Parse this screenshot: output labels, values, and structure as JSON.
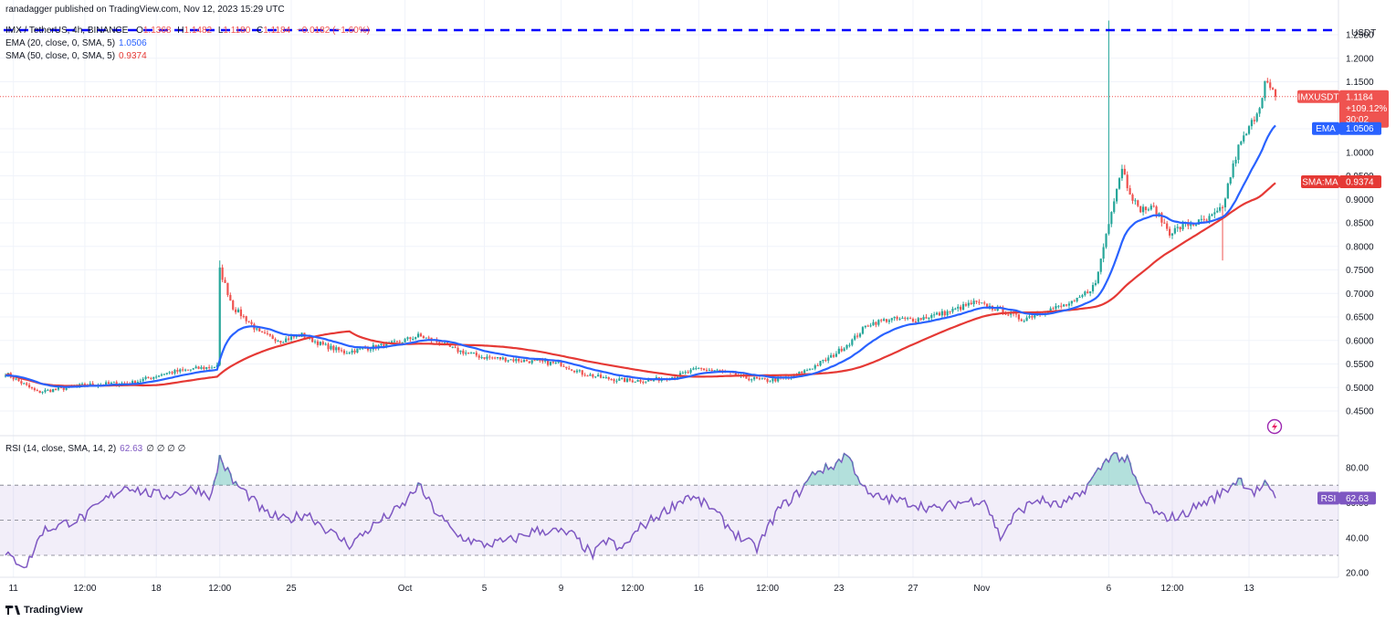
{
  "header": {
    "author_line": "ranadagger published on TradingView.com, Nov 12, 2023 15:29 UTC",
    "symbol_line": "IMX / TetherUS, 4h, BINANCE",
    "ohlc": {
      "o_label": "O",
      "o": "1.1368",
      "h_label": "H",
      "h": "1.1482",
      "l_label": "L",
      "l": "1.1180",
      "c_label": "C",
      "c": "1.1184",
      "chg": "−0.0182 (−1.60%)"
    },
    "ema_label": "EMA (20, close, 0, SMA, 5)",
    "ema_value": "1.0506",
    "sma_label": "SMA (50, close, 0, SMA, 5)",
    "sma_value": "0.9374",
    "rsi_label": "RSI (14, close, SMA, 14, 2)",
    "rsi_value": "62.63",
    "rsi_extra": "∅ ∅ ∅ ∅"
  },
  "branding": {
    "name": "TradingView"
  },
  "price_axis": {
    "currency": "USDT",
    "ticks": [
      "1.2500",
      "1.2000",
      "1.1500",
      "1.0500",
      "1.0000",
      "0.9500",
      "0.9000",
      "0.8500",
      "0.8000",
      "0.7500",
      "0.7000",
      "0.6500",
      "0.6000",
      "0.5500",
      "0.5000",
      "0.4500"
    ]
  },
  "rsi_axis": {
    "ticks": [
      "80.00",
      "60.00",
      "40.00",
      "20.00"
    ]
  },
  "time_axis": {
    "labels": [
      "11",
      "12:00",
      "18",
      "12:00",
      "25",
      "Oct",
      "5",
      "9",
      "12:00",
      "16",
      "12:00",
      "23",
      "27",
      "Nov",
      "6",
      "12:00",
      "13"
    ]
  },
  "tags": {
    "price": {
      "symbol": "IMXUSDT",
      "value": "1.1184",
      "change": "+109.12%",
      "countdown": "30:02"
    },
    "ema": {
      "label": "EMA",
      "value": "1.0506"
    },
    "sma": {
      "label": "SMA:MA",
      "value": "0.9374"
    },
    "rsi": {
      "label": "RSI",
      "value": "62.63"
    }
  },
  "colors": {
    "up": "#26a69a",
    "down": "#ef5350",
    "ema": "#2962ff",
    "sma": "#e53935",
    "rsi": "#7e57c2",
    "resistance": "#0000ff",
    "grid": "#f0f3fa"
  },
  "chart_data": [
    {
      "type": "candlestick",
      "title": "IMX / TetherUS, 4h, BINANCE",
      "ylabel": "USDT",
      "ylim": [
        0.45,
        1.28
      ],
      "resistance_level": 1.29,
      "x_labels": [
        "11",
        "12:00",
        "18",
        "12:00",
        "25",
        "Oct",
        "5",
        "9",
        "12:00",
        "16",
        "12:00",
        "23",
        "27",
        "Nov",
        "6",
        "12:00",
        "13"
      ],
      "anchors": [
        [
          0,
          0.53
        ],
        [
          12,
          0.49
        ],
        [
          30,
          0.505
        ],
        [
          48,
          0.51
        ],
        [
          60,
          0.53
        ],
        [
          72,
          0.54
        ],
        [
          80,
          0.545
        ],
        [
          81,
          0.75
        ],
        [
          86,
          0.67
        ],
        [
          92,
          0.64
        ],
        [
          96,
          0.615
        ],
        [
          104,
          0.6
        ],
        [
          112,
          0.612
        ],
        [
          120,
          0.59
        ],
        [
          128,
          0.575
        ],
        [
          138,
          0.585
        ],
        [
          148,
          0.595
        ],
        [
          156,
          0.61
        ],
        [
          162,
          0.6
        ],
        [
          170,
          0.58
        ],
        [
          180,
          0.565
        ],
        [
          190,
          0.56
        ],
        [
          200,
          0.555
        ],
        [
          210,
          0.55
        ],
        [
          218,
          0.53
        ],
        [
          226,
          0.52
        ],
        [
          234,
          0.515
        ],
        [
          244,
          0.515
        ],
        [
          254,
          0.525
        ],
        [
          262,
          0.54
        ],
        [
          270,
          0.535
        ],
        [
          280,
          0.52
        ],
        [
          288,
          0.515
        ],
        [
          296,
          0.52
        ],
        [
          304,
          0.54
        ],
        [
          312,
          0.565
        ],
        [
          320,
          0.6
        ],
        [
          326,
          0.635
        ],
        [
          334,
          0.645
        ],
        [
          344,
          0.645
        ],
        [
          356,
          0.66
        ],
        [
          366,
          0.68
        ],
        [
          376,
          0.665
        ],
        [
          384,
          0.645
        ],
        [
          394,
          0.665
        ],
        [
          404,
          0.68
        ],
        [
          412,
          0.72
        ],
        [
          418,
          0.88
        ],
        [
          422,
          0.97
        ],
        [
          424,
          0.93
        ],
        [
          428,
          0.88
        ],
        [
          434,
          0.88
        ],
        [
          440,
          0.83
        ],
        [
          446,
          0.845
        ],
        [
          454,
          0.855
        ],
        [
          460,
          0.88
        ],
        [
          462,
          0.93
        ],
        [
          466,
          1.01
        ],
        [
          470,
          1.05
        ],
        [
          474,
          1.1
        ],
        [
          476,
          1.15
        ],
        [
          480,
          1.1184
        ]
      ],
      "series": [
        {
          "name": "EMA (20, close, 0, SMA, 5)",
          "last": 1.0506
        },
        {
          "name": "SMA (50, close, 0, SMA, 5)",
          "last": 0.9374
        }
      ]
    },
    {
      "type": "line",
      "title": "RSI (14, close, SMA, 14, 2)",
      "ylim": [
        16,
        92
      ],
      "bands": [
        70,
        50,
        30
      ],
      "anchors": [
        [
          0,
          30
        ],
        [
          8,
          24
        ],
        [
          14,
          44
        ],
        [
          22,
          48
        ],
        [
          30,
          52
        ],
        [
          38,
          62
        ],
        [
          46,
          70
        ],
        [
          52,
          66
        ],
        [
          60,
          64
        ],
        [
          66,
          66
        ],
        [
          72,
          68
        ],
        [
          78,
          64
        ],
        [
          81,
          86
        ],
        [
          86,
          72
        ],
        [
          92,
          64
        ],
        [
          98,
          54
        ],
        [
          106,
          50
        ],
        [
          114,
          54
        ],
        [
          122,
          44
        ],
        [
          130,
          36
        ],
        [
          140,
          48
        ],
        [
          150,
          58
        ],
        [
          156,
          70
        ],
        [
          162,
          56
        ],
        [
          170,
          42
        ],
        [
          180,
          36
        ],
        [
          190,
          38
        ],
        [
          200,
          44
        ],
        [
          206,
          44
        ],
        [
          214,
          42
        ],
        [
          222,
          30
        ],
        [
          228,
          40
        ],
        [
          232,
          32
        ],
        [
          240,
          46
        ],
        [
          250,
          56
        ],
        [
          258,
          64
        ],
        [
          266,
          58
        ],
        [
          276,
          42
        ],
        [
          284,
          34
        ],
        [
          292,
          56
        ],
        [
          300,
          66
        ],
        [
          306,
          78
        ],
        [
          312,
          80
        ],
        [
          318,
          88
        ],
        [
          326,
          64
        ],
        [
          334,
          62
        ],
        [
          342,
          60
        ],
        [
          352,
          56
        ],
        [
          360,
          60
        ],
        [
          370,
          62
        ],
        [
          376,
          40
        ],
        [
          382,
          54
        ],
        [
          390,
          62
        ],
        [
          398,
          58
        ],
        [
          406,
          64
        ],
        [
          414,
          80
        ],
        [
          418,
          88
        ],
        [
          424,
          84
        ],
        [
          430,
          62
        ],
        [
          436,
          52
        ],
        [
          444,
          52
        ],
        [
          450,
          58
        ],
        [
          456,
          62
        ],
        [
          462,
          68
        ],
        [
          466,
          74
        ],
        [
          472,
          66
        ],
        [
          476,
          70
        ],
        [
          480,
          62.63
        ]
      ]
    }
  ]
}
